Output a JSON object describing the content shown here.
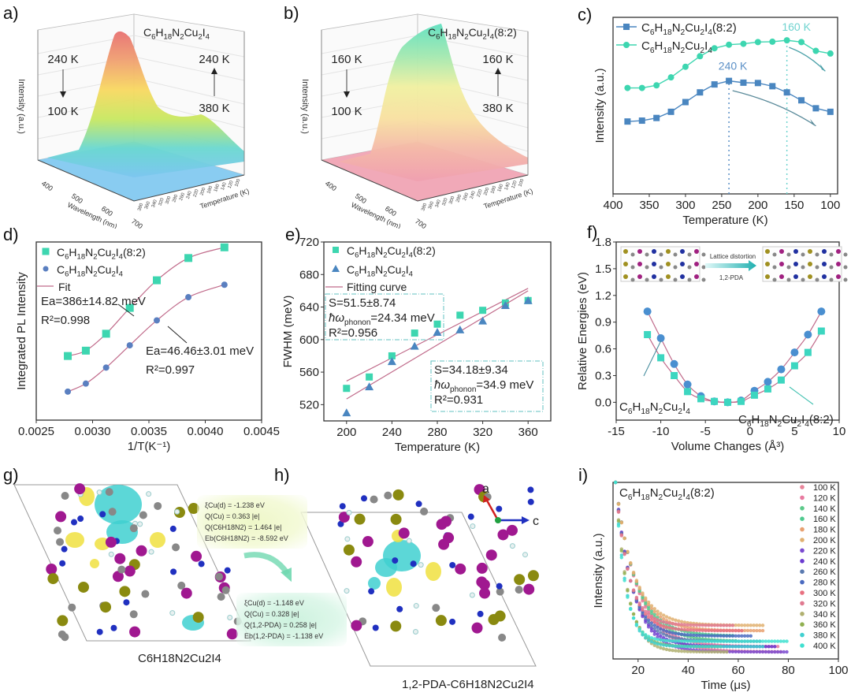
{
  "panel_labels": [
    "a)",
    "b)",
    "c)",
    "d)",
    "e)",
    "f)",
    "g)",
    "h)",
    "i)"
  ],
  "chart_data": [
    {
      "id": "a",
      "type": "surface3d",
      "title": "C6H18N2Cu2I4",
      "xlabel": "Wavelength (nm)",
      "ylabel": "Temperature (K)",
      "zlabel": "Intensity (a.u.)",
      "x_ticks": [
        "400",
        "500",
        "600",
        "700"
      ],
      "y_ticks": [
        "380",
        "360",
        "340",
        "320",
        "300",
        "280",
        "260",
        "240",
        "220",
        "200",
        "180",
        "160",
        "140",
        "120",
        "100"
      ],
      "annotations": [
        {
          "from": "240 K",
          "to": "100 K",
          "direction": "down"
        },
        {
          "from": "380 K",
          "to": "240 K",
          "direction": "up"
        }
      ],
      "colormap": "rainbow"
    },
    {
      "id": "b",
      "type": "surface3d",
      "title": "C6H18N2Cu2I4(8:2)",
      "xlabel": "Wavelength (nm)",
      "ylabel": "Temperature (K)",
      "zlabel": "Intensity (a.u.)",
      "x_ticks": [
        "400",
        "500",
        "600",
        "700"
      ],
      "y_ticks": [
        "380",
        "360",
        "340",
        "320",
        "300",
        "280",
        "260",
        "240",
        "220",
        "200",
        "180",
        "160",
        "140",
        "120",
        "100"
      ],
      "annotations": [
        {
          "from": "160 K",
          "to": "100 K",
          "direction": "down"
        },
        {
          "from": "380 K",
          "to": "160 K",
          "direction": "up"
        }
      ],
      "colormap": "pink-yellow-green"
    },
    {
      "id": "c",
      "type": "line",
      "xlabel": "Temperature (K)",
      "ylabel": "Intensity (a.u.)",
      "xlim": [
        400,
        90
      ],
      "x_ticks": [
        400,
        350,
        300,
        250,
        200,
        150,
        100
      ],
      "ylim": [
        0,
        10
      ],
      "x": [
        380,
        360,
        340,
        320,
        300,
        280,
        260,
        240,
        220,
        200,
        180,
        160,
        140,
        120,
        100
      ],
      "series": [
        {
          "name": "C6H18N2Cu2I4(8:2)",
          "marker": "square",
          "color": "#4a86c0",
          "values": [
            4.1,
            4.15,
            4.3,
            4.65,
            5.2,
            5.75,
            6.2,
            6.4,
            6.3,
            6.28,
            6.1,
            5.75,
            5.3,
            4.85,
            4.65
          ]
        },
        {
          "name": "C6H18N2Cu2I4",
          "marker": "circle",
          "color": "#3dd6b0",
          "values": [
            6.0,
            6.0,
            6.15,
            6.6,
            7.2,
            7.8,
            8.25,
            8.45,
            8.5,
            8.6,
            8.62,
            8.7,
            8.6,
            8.1,
            7.95
          ]
        }
      ],
      "annotations": [
        {
          "text": "240 K",
          "x": 240,
          "color": "#5a8fc6"
        },
        {
          "text": "160 K",
          "x": 160,
          "color": "#6fd3cf"
        }
      ]
    },
    {
      "id": "d",
      "type": "scatter",
      "xlabel": "1/T(K⁻¹)",
      "ylabel": "Integrated PL Intensity",
      "xlim": [
        0.0025,
        0.0045
      ],
      "x_ticks": [
        "0.0025",
        "0.0030",
        "0.0035",
        "0.0040",
        "0.0045"
      ],
      "ylim": [
        0,
        10
      ],
      "x": [
        0.00278,
        0.00294,
        0.00312,
        0.00333,
        0.00357,
        0.00385,
        0.00417
      ],
      "series": [
        {
          "name": "C6H18N2Cu2I4(8:2)",
          "marker": "square",
          "color": "#3dd6b0",
          "values": [
            3.6,
            3.9,
            4.85,
            6.3,
            7.85,
            9.1,
            9.7
          ]
        },
        {
          "name": "C6H18N2Cu2I4",
          "marker": "circle",
          "color": "#5a7fc0",
          "values": [
            1.6,
            2.05,
            2.95,
            4.2,
            5.6,
            6.9,
            7.6
          ]
        },
        {
          "name": "Fit",
          "type": "line",
          "color": "#c06a8a"
        }
      ],
      "annotations": [
        {
          "text": "Ea=386±14.82 meV",
          "sub": "R²=0.998"
        },
        {
          "text": "Ea=46.46±3.01 meV",
          "sub": "R²=0.997"
        }
      ]
    },
    {
      "id": "e",
      "type": "scatter",
      "xlabel": "Temperature (K)",
      "ylabel": "FWHM (meV)",
      "xlim": [
        180,
        380
      ],
      "x_ticks": [
        200,
        240,
        280,
        320,
        360
      ],
      "ylim": [
        500,
        720
      ],
      "y_ticks": [
        520,
        560,
        600,
        640,
        680,
        720
      ],
      "x": [
        200,
        220,
        240,
        260,
        280,
        300,
        320,
        340,
        360
      ],
      "series": [
        {
          "name": "C6H18N2Cu2I4(8:2)",
          "marker": "square",
          "color": "#3dd6b0",
          "values": [
            540,
            554,
            580,
            608,
            619,
            630,
            636,
            645,
            648
          ],
          "fit": [
            549,
            663
          ]
        },
        {
          "name": "C6H18N2Cu2I4",
          "marker": "triangle",
          "color": "#4a86c0",
          "values": [
            510,
            542,
            573,
            592,
            609,
            612,
            623,
            642,
            648
          ],
          "fit": [
            527,
            660
          ]
        },
        {
          "name": "Fitting curve",
          "type": "line",
          "color": "#c06a8a"
        }
      ],
      "boxes": [
        {
          "lines": [
            "S=51.5±8.74",
            "ħω_phonon=24.34 meV",
            "R²=0.956"
          ]
        },
        {
          "lines": [
            "S=34.18±9.34",
            "ħω_phonon=34.9 meV",
            "R²=0.931"
          ]
        }
      ]
    },
    {
      "id": "f",
      "type": "scatter",
      "xlabel": "Volume Changes (Å³)",
      "ylabel": "Relative Energies (eV)",
      "xlim": [
        -15,
        10
      ],
      "x_ticks": [
        -15,
        -10,
        -5,
        0,
        5,
        10
      ],
      "ylim": [
        -0.2,
        1.8
      ],
      "y_ticks": [
        "0.0",
        "0.3",
        "0.6",
        "0.9",
        "1.2",
        "1.5",
        "1.8"
      ],
      "x": [
        -11.5,
        -10,
        -8.5,
        -7,
        -5.5,
        -4,
        -2.5,
        -1,
        0.5,
        2,
        3.5,
        5,
        6.5,
        8
      ],
      "series": [
        {
          "name": "C6H18N2Cu2I4",
          "marker": "circle",
          "color": "#4a8fd0",
          "values": [
            1.02,
            0.72,
            0.43,
            0.2,
            0.07,
            0.01,
            0.0,
            0.02,
            0.13,
            0.23,
            0.37,
            0.56,
            0.76,
            1.02
          ]
        },
        {
          "name": "C6H18N2Cu2I4(8:2)",
          "marker": "square",
          "color": "#3dd6c0",
          "values": [
            0.76,
            0.5,
            0.3,
            0.12,
            0.04,
            0.01,
            0.0,
            0.01,
            0.08,
            0.15,
            0.25,
            0.41,
            0.56,
            0.8
          ]
        }
      ],
      "inset": {
        "arrow_label_top": "Lattice distortion",
        "arrow_label_bottom": "1,2-PDA"
      },
      "labels": [
        "C6H18N2Cu2I4",
        "C6H18N2Cu2I4(8:2)"
      ]
    },
    {
      "id": "i",
      "type": "scatter",
      "title": "C6H18N2Cu2I4(8:2)",
      "xlabel": "Time (μs)",
      "ylabel": "Intensity (a.u.)",
      "xlim": [
        10,
        100
      ],
      "x_ticks": [
        20,
        40,
        60,
        80,
        100
      ],
      "series": [
        {
          "name": "100 K",
          "color": "#e8849a",
          "tail_end": 78
        },
        {
          "name": "120 K",
          "color": "#e87aa0",
          "tail_end": 77
        },
        {
          "name": "140 K",
          "color": "#5cc98a",
          "tail_end": 60
        },
        {
          "name": "160 K",
          "color": "#4fc98f",
          "tail_end": 59
        },
        {
          "name": "180 K",
          "color": "#e8a070",
          "tail_end": 71
        },
        {
          "name": "200 K",
          "color": "#e0b070",
          "tail_end": 70
        },
        {
          "name": "220 K",
          "color": "#7a4ad0",
          "tail_end": 80
        },
        {
          "name": "240 K",
          "color": "#6a3ad0",
          "tail_end": 75
        },
        {
          "name": "260 K",
          "color": "#5a7ab0",
          "tail_end": 69
        },
        {
          "name": "280 K",
          "color": "#4a6ac0",
          "tail_end": 66
        },
        {
          "name": "300 K",
          "color": "#e87080",
          "tail_end": 62
        },
        {
          "name": "320 K",
          "color": "#e07a90",
          "tail_end": 58
        },
        {
          "name": "340 K",
          "color": "#b0b070",
          "tail_end": 56
        },
        {
          "name": "360 K",
          "color": "#90b050",
          "tail_end": 54
        },
        {
          "name": "380 K",
          "color": "#40d0d0",
          "tail_end": 70
        },
        {
          "name": "400 K",
          "color": "#40e0d0",
          "tail_end": 80
        }
      ]
    }
  ],
  "structures": {
    "g": {
      "caption": "C6H18N2Cu2I4",
      "info": [
        "ξCu(d) = -1.238 eV",
        "Q(Cu) = 0.363 |e|",
        "Q(C6H18N2) = 1.464 |e|",
        "Eb(C6H18N2) = -8.592 eV"
      ]
    },
    "h": {
      "caption": "1,2-PDA-C6H18N2Cu2I4",
      "info": [
        "ξCu(d) = -1.148 eV",
        "Q(Cu) = 0.328 |e|",
        "Q(1,2-PDA) = 0.258 |e|",
        "Eb(1,2-PDA) = -1.138 eV"
      ],
      "axes": {
        "up": "a",
        "right": "c"
      }
    }
  }
}
